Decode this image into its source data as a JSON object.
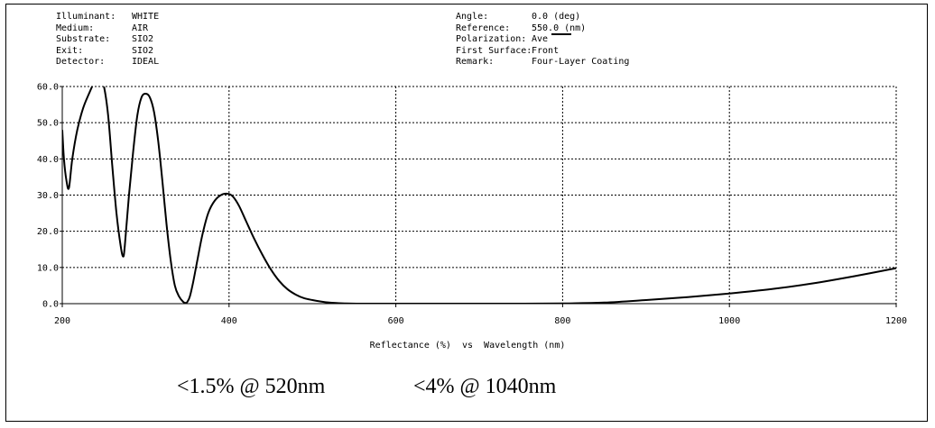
{
  "header_left": [
    {
      "key": "Illuminant:",
      "value": "WHITE"
    },
    {
      "key": "Medium:",
      "value": "AIR"
    },
    {
      "key": "Substrate:",
      "value": "SIO2"
    },
    {
      "key": "Exit:",
      "value": "SIO2"
    },
    {
      "key": "Detector:",
      "value": "IDEAL"
    }
  ],
  "header_right": [
    {
      "key": "Angle:",
      "value": "0.0 (deg)"
    },
    {
      "key": "Reference:",
      "value": "550.0 (nm)"
    },
    {
      "key": "Polarization:",
      "value": "Ave"
    },
    {
      "key": "First Surface:",
      "value": "Front"
    },
    {
      "key": "Remark:",
      "value": "Four-Layer Coating"
    }
  ],
  "annotations": {
    "left": "<1.5% @ 520nm",
    "right": "<4% @ 1040nm"
  },
  "chart_data": {
    "type": "line",
    "xlabel": "Reflectance (%)  vs  Wavelength (nm)",
    "ylabel": "",
    "xlim": [
      200,
      1200
    ],
    "ylim": [
      0,
      60
    ],
    "xticks": [
      200,
      400,
      600,
      800,
      1000,
      1200
    ],
    "yticks": [
      0,
      10,
      20,
      30,
      40,
      50,
      60
    ],
    "ytick_labels": [
      "0.0",
      "10.0",
      "20.0",
      "30.0",
      "40.0",
      "50.0",
      "60.0"
    ],
    "grid": true,
    "line_color": "#000000",
    "series": [
      {
        "name": "Ave",
        "x": [
          200,
          202,
          205,
          208,
          212,
          218,
          225,
          232,
          240,
          245,
          250,
          255,
          260,
          265,
          270,
          273,
          275,
          280,
          285,
          290,
          295,
          300,
          305,
          310,
          315,
          320,
          325,
          330,
          335,
          340,
          345,
          348,
          350,
          353,
          357,
          362,
          368,
          375,
          383,
          392,
          400,
          405,
          412,
          420,
          430,
          440,
          450,
          460,
          470,
          480,
          490,
          500,
          510,
          520,
          530,
          540,
          560,
          580,
          600,
          650,
          700,
          750,
          800,
          850,
          900,
          950,
          1000,
          1050,
          1100,
          1150,
          1200
        ],
        "y": [
          48,
          40,
          34,
          32,
          40,
          48,
          54,
          58,
          62,
          63,
          60,
          52,
          38,
          25,
          16,
          13,
          16,
          30,
          42,
          52,
          57,
          58,
          57,
          53,
          45,
          34,
          22,
          12,
          5,
          2,
          0.5,
          0.2,
          0.5,
          2,
          6,
          12,
          19,
          25,
          28.5,
          30.2,
          30.3,
          29.5,
          27,
          23,
          18,
          13.5,
          9.5,
          6.3,
          4,
          2.5,
          1.5,
          1.0,
          0.6,
          0.3,
          0.15,
          0.05,
          0,
          0,
          0,
          0,
          0,
          0,
          0.05,
          0.3,
          1.0,
          1.8,
          2.8,
          4.0,
          5.6,
          7.6,
          9.8
        ]
      }
    ]
  }
}
